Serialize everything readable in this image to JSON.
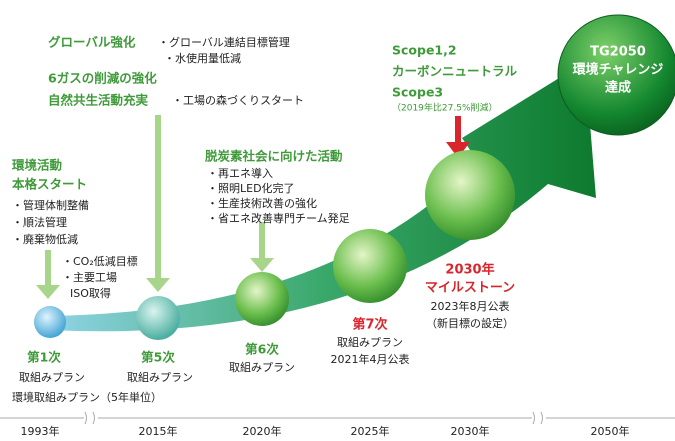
{
  "top_group": {
    "heading1": "グローバル強化",
    "items1": [
      "・グローバル連結目標管理",
      "・水使用量低減"
    ],
    "heading2": "6ガスの削減の強化",
    "heading3": "自然共生活動充実",
    "items3": [
      "・工場の森づくりスタート"
    ]
  },
  "start_group": {
    "heading": [
      "環境活動",
      "本格スタート"
    ],
    "items": [
      "・管理体制整備",
      "・順法管理",
      "・廃棄物低減"
    ]
  },
  "iso_group": {
    "items": [
      "・CO₂低減目標",
      "・主要工場",
      "ISO取得"
    ]
  },
  "decarb_group": {
    "heading": "脱炭素社会に向けた活動",
    "items": [
      "・再エネ導入",
      "・照明LED化完了",
      "・生産技術改善の強化",
      "・省エネ改善専門チーム発足"
    ]
  },
  "scope_group": {
    "lines": [
      "Scope1,2",
      "カーボンニュートラル",
      "Scope3"
    ],
    "note": "（2019年比27.5%削減）"
  },
  "goal": {
    "lines": [
      "TG2050",
      "環境チャレンジ",
      "達成"
    ]
  },
  "plans": {
    "first": {
      "name": "第1次",
      "sub": "取組みプラン"
    },
    "fifth": {
      "name": "第5次",
      "sub": "取組みプラン"
    },
    "series_note": "環境取組みプラン（5年単位）",
    "sixth": {
      "name": "第6次",
      "sub": "取組みプラン"
    },
    "seventh": {
      "name": "第7次",
      "sub": "取組みプラン",
      "date": "2021年4月公表"
    },
    "milestone": {
      "lines": [
        "2030年",
        "マイルストーン"
      ],
      "date": "2023年8月公表",
      "note": "（新目標の設定）"
    }
  },
  "timeline": [
    "1993年",
    "2015年",
    "2020年",
    "2025年",
    "2030年",
    "2050年"
  ]
}
